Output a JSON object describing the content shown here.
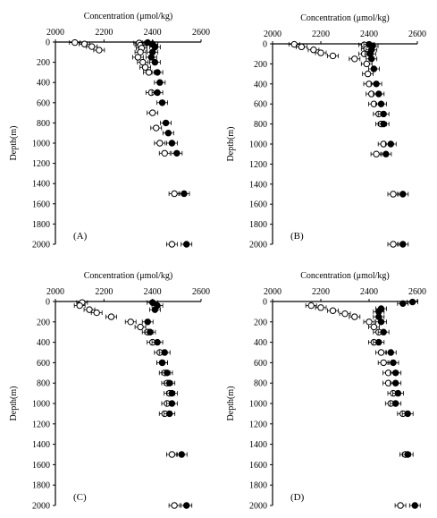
{
  "chart_data": [
    {
      "type": "scatter",
      "panel_label": "(A)",
      "title": "Concentration (μmol/kg)",
      "ylabel": "Depth(m)",
      "xlim": [
        2000,
        2600
      ],
      "ylim": [
        2000,
        0
      ],
      "x_ticks": [
        "2000",
        "2200",
        "2400",
        "2600"
      ],
      "y_ticks": [
        "0",
        "200",
        "400",
        "600",
        "800",
        "1000",
        "1200",
        "1400",
        "1600",
        "1800",
        "2000"
      ],
      "series": [
        {
          "marker": "open-circle",
          "points": [
            [
              2080,
              5
            ],
            [
              2120,
              20
            ],
            [
              2150,
              45
            ],
            [
              2180,
              80
            ],
            [
              2345,
              10
            ],
            [
              2350,
              30
            ],
            [
              2355,
              60
            ],
            [
              2350,
              100
            ],
            [
              2340,
              150
            ],
            [
              2360,
              200
            ],
            [
              2370,
              250
            ],
            [
              2385,
              300
            ],
            [
              2395,
              500
            ],
            [
              2400,
              700
            ],
            [
              2415,
              850
            ],
            [
              2430,
              1000
            ],
            [
              2450,
              1100
            ],
            [
              2490,
              1500
            ],
            [
              2480,
              2000
            ]
          ]
        },
        {
          "marker": "filled-circle",
          "points": [
            [
              2380,
              5
            ],
            [
              2400,
              20
            ],
            [
              2410,
              50
            ],
            [
              2400,
              100
            ],
            [
              2395,
              150
            ],
            [
              2410,
              200
            ],
            [
              2420,
              300
            ],
            [
              2430,
              400
            ],
            [
              2420,
              500
            ],
            [
              2440,
              600
            ],
            [
              2455,
              800
            ],
            [
              2465,
              900
            ],
            [
              2480,
              1000
            ],
            [
              2500,
              1100
            ],
            [
              2530,
              1500
            ],
            [
              2540,
              2000
            ]
          ]
        }
      ]
    },
    {
      "type": "scatter",
      "panel_label": "(B)",
      "title": "Concentration (μmol/kg)",
      "ylabel": "Depth(m)",
      "xlim": [
        2000,
        2600
      ],
      "ylim": [
        2000,
        0
      ],
      "x_ticks": [
        "2000",
        "2200",
        "2400",
        "2600"
      ],
      "y_ticks": [
        "0",
        "200",
        "400",
        "600",
        "800",
        "1000",
        "1200",
        "1400",
        "1600",
        "1800",
        "2000"
      ],
      "series": [
        {
          "marker": "open-circle",
          "points": [
            [
              2090,
              5
            ],
            [
              2120,
              30
            ],
            [
              2170,
              60
            ],
            [
              2200,
              90
            ],
            [
              2250,
              120
            ],
            [
              2340,
              150
            ],
            [
              2380,
              10
            ],
            [
              2390,
              50
            ],
            [
              2380,
              100
            ],
            [
              2390,
              200
            ],
            [
              2395,
              300
            ],
            [
              2400,
              400
            ],
            [
              2410,
              500
            ],
            [
              2420,
              600
            ],
            [
              2440,
              700
            ],
            [
              2450,
              800
            ],
            [
              2460,
              1000
            ],
            [
              2430,
              1100
            ],
            [
              2500,
              1500
            ],
            [
              2500,
              2000
            ]
          ]
        },
        {
          "marker": "filled-circle",
          "points": [
            [
              2400,
              5
            ],
            [
              2415,
              20
            ],
            [
              2410,
              60
            ],
            [
              2405,
              100
            ],
            [
              2410,
              150
            ],
            [
              2420,
              250
            ],
            [
              2430,
              400
            ],
            [
              2440,
              500
            ],
            [
              2450,
              600
            ],
            [
              2460,
              700
            ],
            [
              2460,
              800
            ],
            [
              2490,
              1000
            ],
            [
              2470,
              1100
            ],
            [
              2540,
              1500
            ],
            [
              2540,
              2000
            ]
          ]
        }
      ]
    },
    {
      "type": "scatter",
      "panel_label": "(C)",
      "title": "Concentration (μmol/kg)",
      "ylabel": "Depth(m)",
      "xlim": [
        2000,
        2600
      ],
      "ylim": [
        2000,
        0
      ],
      "x_ticks": [
        "2000",
        "2200",
        "2400",
        "2600"
      ],
      "y_ticks": [
        "0",
        "200",
        "400",
        "600",
        "800",
        "1000",
        "1200",
        "1400",
        "1600",
        "1800",
        "2000"
      ],
      "series": [
        {
          "marker": "open-circle",
          "points": [
            [
              2110,
              10
            ],
            [
              2100,
              40
            ],
            [
              2140,
              80
            ],
            [
              2170,
              110
            ],
            [
              2230,
              150
            ],
            [
              2310,
              200
            ],
            [
              2350,
              250
            ],
            [
              2380,
              300
            ],
            [
              2400,
              400
            ],
            [
              2430,
              500
            ],
            [
              2440,
              600
            ],
            [
              2450,
              700
            ],
            [
              2460,
              800
            ],
            [
              2470,
              900
            ],
            [
              2460,
              1000
            ],
            [
              2450,
              1100
            ],
            [
              2480,
              1500
            ],
            [
              2490,
              2000
            ]
          ]
        },
        {
          "marker": "filled-circle",
          "points": [
            [
              2400,
              10
            ],
            [
              2420,
              40
            ],
            [
              2410,
              80
            ],
            [
              2380,
              200
            ],
            [
              2390,
              300
            ],
            [
              2420,
              400
            ],
            [
              2450,
              500
            ],
            [
              2440,
              600
            ],
            [
              2460,
              700
            ],
            [
              2470,
              800
            ],
            [
              2480,
              900
            ],
            [
              2480,
              1000
            ],
            [
              2470,
              1100
            ],
            [
              2520,
              1500
            ],
            [
              2540,
              2000
            ]
          ]
        }
      ]
    },
    {
      "type": "scatter",
      "panel_label": "(D)",
      "title": "Concentration (μmol/kg)",
      "ylabel": "Depth(m)",
      "xlim": [
        2000,
        2600
      ],
      "ylim": [
        2000,
        0
      ],
      "x_ticks": [
        "2000",
        "2200",
        "2400",
        "2600"
      ],
      "y_ticks": [
        "0",
        "200",
        "400",
        "600",
        "800",
        "1000",
        "1200",
        "1400",
        "1600",
        "1800",
        "2000"
      ],
      "series": [
        {
          "marker": "open-circle",
          "points": [
            [
              2160,
              40
            ],
            [
              2200,
              60
            ],
            [
              2250,
              90
            ],
            [
              2300,
              120
            ],
            [
              2340,
              150
            ],
            [
              2400,
              200
            ],
            [
              2420,
              250
            ],
            [
              2440,
              300
            ],
            [
              2420,
              400
            ],
            [
              2450,
              500
            ],
            [
              2460,
              600
            ],
            [
              2480,
              700
            ],
            [
              2480,
              800
            ],
            [
              2500,
              900
            ],
            [
              2490,
              1000
            ],
            [
              2540,
              1100
            ],
            [
              2550,
              1500
            ],
            [
              2530,
              2000
            ]
          ]
        },
        {
          "marker": "filled-circle",
          "points": [
            [
              2580,
              5
            ],
            [
              2540,
              20
            ],
            [
              2450,
              70
            ],
            [
              2440,
              100
            ],
            [
              2440,
              150
            ],
            [
              2450,
              200
            ],
            [
              2460,
              300
            ],
            [
              2440,
              400
            ],
            [
              2490,
              500
            ],
            [
              2500,
              600
            ],
            [
              2510,
              700
            ],
            [
              2510,
              800
            ],
            [
              2520,
              900
            ],
            [
              2510,
              1000
            ],
            [
              2560,
              1100
            ],
            [
              2560,
              1500
            ],
            [
              2590,
              2000
            ]
          ]
        }
      ]
    }
  ]
}
